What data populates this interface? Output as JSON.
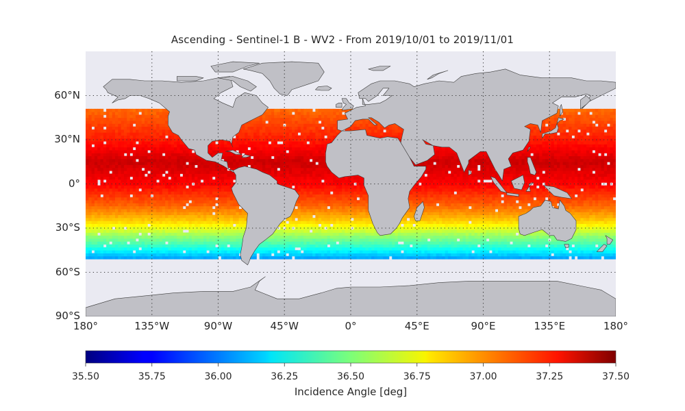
{
  "title": "Ascending - Sentinel-1 B - WV2 - From 2019/10/01 to 2019/11/01",
  "map": {
    "projection": "equirectangular",
    "ocean_color": "#eaeaf2",
    "land_color": "#c0c0c6",
    "coast_color": "#3a3a3a",
    "grid_style": "dotted",
    "lat_labels": [
      {
        "text": "60°N",
        "lat": 60
      },
      {
        "text": "30°N",
        "lat": 30
      },
      {
        "text": "0°",
        "lat": 0
      },
      {
        "text": "30°S",
        "lat": -30
      },
      {
        "text": "60°S",
        "lat": -60
      },
      {
        "text": "90°S",
        "lat": -90
      }
    ],
    "lon_labels": [
      {
        "text": "180°",
        "lon": -180
      },
      {
        "text": "135°W",
        "lon": -135
      },
      {
        "text": "90°W",
        "lon": -90
      },
      {
        "text": "45°W",
        "lon": -45
      },
      {
        "text": "0°",
        "lon": 0
      },
      {
        "text": "45°E",
        "lon": 45
      },
      {
        "text": "90°E",
        "lon": 90
      },
      {
        "text": "135°E",
        "lon": 135
      },
      {
        "text": "180°",
        "lon": 180
      }
    ],
    "lat_range": [
      -90,
      90
    ],
    "lon_range": [
      -180,
      180
    ]
  },
  "colorbar": {
    "colormap": "jet",
    "min": 35.5,
    "max": 37.5,
    "ticks": [
      "35.50",
      "35.75",
      "36.00",
      "36.25",
      "36.50",
      "36.75",
      "37.00",
      "37.25",
      "37.50"
    ],
    "label": "Incidence Angle [deg]"
  },
  "chart_data": {
    "type": "heatmap",
    "title": "Ascending - Sentinel-1 B - WV2 - From 2019/10/01 to 2019/11/01",
    "variable": "Incidence Angle [deg]",
    "value_range": [
      35.5,
      37.5
    ],
    "data_lat_range": [
      -51,
      50
    ],
    "latitude_profile": [
      {
        "lat": 50,
        "value": 37.05
      },
      {
        "lat": 30,
        "value": 37.2
      },
      {
        "lat": 15,
        "value": 37.35
      },
      {
        "lat": 0,
        "value": 37.25
      },
      {
        "lat": -15,
        "value": 37.05
      },
      {
        "lat": -25,
        "value": 36.85
      },
      {
        "lat": -35,
        "value": 36.55
      },
      {
        "lat": -42,
        "value": 36.35
      },
      {
        "lat": -48,
        "value": 36.15
      },
      {
        "lat": -51,
        "value": 36.05
      }
    ]
  }
}
